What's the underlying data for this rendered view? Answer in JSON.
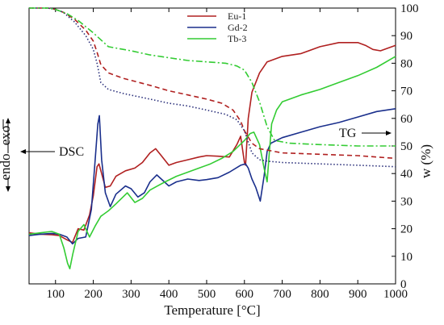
{
  "chart_data": {
    "type": "line",
    "xlabel": "Temperature [°C]",
    "ylabel_right": "w (%)",
    "xlim": [
      30,
      1000
    ],
    "ylim_right": [
      0,
      100
    ],
    "x_ticks": [
      100,
      200,
      300,
      400,
      500,
      600,
      700,
      800,
      900,
      1000
    ],
    "y_ticks_right": [
      0,
      10,
      20,
      30,
      40,
      50,
      60,
      70,
      80,
      90,
      100
    ],
    "legend_position": "top-center",
    "left_axis_label_endo": "endo",
    "left_axis_label_exo": "exo",
    "annotations": {
      "dsc": "DSC",
      "tg": "TG"
    },
    "colors": {
      "Eu-1": "#b02020",
      "Gd-2": "#1a2f8c",
      "Tb-3": "#33cc33",
      "TG-Gd-2": "#2a2f7a"
    },
    "series": [
      {
        "name": "Eu-1",
        "kind": "DSC",
        "x": [
          30,
          60,
          90,
          110,
          130,
          145,
          160,
          175,
          190,
          200,
          210,
          215,
          222,
          232,
          245,
          260,
          285,
          310,
          330,
          350,
          365,
          380,
          400,
          420,
          450,
          480,
          500,
          530,
          560,
          580,
          590,
          600,
          603,
          610,
          620,
          640,
          660,
          700,
          750,
          800,
          850,
          900,
          920,
          940,
          960,
          1000
        ],
        "y": [
          18.5,
          18.0,
          17.8,
          17.5,
          16.0,
          15.0,
          20.0,
          19.5,
          25.0,
          32.0,
          42.5,
          43.5,
          40.0,
          35.0,
          35.5,
          39.0,
          41.0,
          42.0,
          44.0,
          47.5,
          49.0,
          46.5,
          43.0,
          44.0,
          45.0,
          46.0,
          46.5,
          46.3,
          46.0,
          50.5,
          53.5,
          44.0,
          43.0,
          60.0,
          69.5,
          76.5,
          80.5,
          82.5,
          83.5,
          86.0,
          87.5,
          87.5,
          86.5,
          85.0,
          84.5,
          86.5
        ]
      },
      {
        "name": "Gd-2",
        "kind": "DSC",
        "x": [
          30,
          60,
          90,
          110,
          130,
          145,
          160,
          180,
          195,
          205,
          212,
          216,
          222,
          232,
          245,
          260,
          285,
          300,
          318,
          335,
          350,
          368,
          380,
          400,
          420,
          450,
          480,
          500,
          530,
          560,
          590,
          603,
          610,
          620,
          630,
          642,
          652,
          660,
          670,
          700,
          750,
          800,
          850,
          900,
          950,
          1000
        ],
        "y": [
          17.5,
          18.0,
          18.3,
          18.0,
          17.0,
          14.5,
          16.5,
          17.0,
          27.0,
          45.0,
          58.0,
          61.0,
          45.0,
          33.0,
          28.0,
          32.5,
          35.5,
          34.5,
          31.5,
          33.0,
          37.0,
          39.5,
          38.0,
          35.5,
          37.0,
          38.0,
          37.5,
          37.8,
          38.5,
          40.5,
          43.0,
          43.5,
          42.0,
          38.0,
          35.0,
          30.0,
          39.0,
          48.0,
          51.0,
          53.0,
          55.0,
          57.0,
          58.5,
          60.5,
          62.5,
          63.5
        ]
      },
      {
        "name": "Tb-3",
        "kind": "DSC",
        "x": [
          30,
          60,
          90,
          110,
          122,
          132,
          138,
          146,
          160,
          175,
          190,
          205,
          220,
          240,
          260,
          290,
          310,
          330,
          350,
          370,
          390,
          420,
          450,
          480,
          510,
          540,
          570,
          600,
          615,
          625,
          640,
          652,
          660,
          665,
          672,
          685,
          700,
          750,
          800,
          850,
          900,
          950,
          1000
        ],
        "y": [
          18.0,
          18.5,
          19.0,
          18.0,
          13.0,
          7.5,
          5.5,
          11.0,
          19.0,
          21.5,
          17.0,
          21.0,
          24.5,
          26.5,
          29.0,
          33.0,
          29.5,
          31.0,
          34.0,
          35.5,
          37.0,
          39.0,
          40.5,
          42.0,
          43.5,
          45.5,
          48.0,
          52.0,
          54.5,
          55.0,
          50.5,
          42.0,
          37.0,
          46.0,
          58.0,
          63.0,
          66.0,
          68.5,
          70.5,
          73.0,
          75.5,
          78.5,
          82.5
        ]
      },
      {
        "name": "Eu-1",
        "kind": "TG",
        "x": [
          30,
          80,
          100,
          120,
          150,
          180,
          200,
          210,
          220,
          240,
          280,
          350,
          400,
          450,
          500,
          540,
          570,
          590,
          600,
          620,
          640,
          660,
          700,
          800,
          900,
          1000
        ],
        "y": [
          100,
          100,
          99.5,
          98.5,
          96,
          92,
          88,
          84,
          79.5,
          76.5,
          74.5,
          72,
          70,
          68.5,
          67,
          65.5,
          63,
          59,
          55.5,
          51,
          49,
          48.5,
          47.5,
          47,
          46.5,
          45.5
        ]
      },
      {
        "name": "Gd-2",
        "kind": "TG",
        "x": [
          30,
          80,
          100,
          120,
          150,
          180,
          200,
          210,
          220,
          240,
          280,
          350,
          400,
          450,
          500,
          550,
          580,
          600,
          620,
          640,
          660,
          700,
          800,
          900,
          1000
        ],
        "y": [
          100,
          100,
          99.5,
          98.5,
          95,
          90,
          85,
          80,
          73,
          70.5,
          69,
          67,
          65.5,
          64.5,
          63,
          61.5,
          59.5,
          55.5,
          47.5,
          45,
          44.5,
          44,
          43.5,
          43,
          42.5
        ]
      },
      {
        "name": "Tb-3",
        "kind": "TG",
        "x": [
          30,
          80,
          100,
          130,
          160,
          200,
          240,
          300,
          350,
          400,
          450,
          500,
          550,
          580,
          600,
          620,
          640,
          660,
          680,
          720,
          800,
          900,
          1000
        ],
        "y": [
          100,
          100,
          99.5,
          98,
          95.5,
          91,
          86,
          84.5,
          83,
          82,
          81,
          80.5,
          80,
          79,
          77.5,
          73,
          66,
          57,
          52,
          51,
          50.5,
          50,
          50
        ]
      }
    ]
  }
}
